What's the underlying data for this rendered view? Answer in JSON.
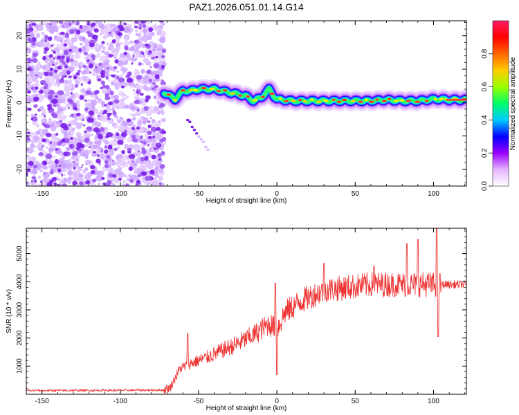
{
  "title": "PAZ1.2026.051.01.14.G14",
  "chart_data": [
    {
      "type": "heatmap",
      "name": "spectrogram",
      "xlabel": "Height of straight line (km)",
      "ylabel": "Frequency (Hz)",
      "xlim": [
        -160,
        121
      ],
      "ylim": [
        -25,
        24.5
      ],
      "xticks": [
        -150,
        -100,
        -50,
        0,
        50,
        100
      ],
      "yticks": [
        -20,
        -10,
        0,
        10,
        20
      ],
      "noise_region_x": [
        -160,
        -72
      ],
      "ridge": {
        "x": [
          -72,
          -65,
          -60,
          -55,
          -50,
          -45,
          -40,
          -35,
          -30,
          -25,
          -20,
          -15,
          -10,
          -8,
          -5,
          -2,
          0,
          10,
          20,
          30,
          40,
          50,
          60,
          70,
          80,
          90,
          100,
          105,
          110,
          121
        ],
        "y": [
          3.0,
          1.0,
          3.5,
          3.5,
          4.0,
          4.0,
          4.0,
          3.5,
          3.0,
          2.5,
          2.0,
          0.5,
          1.5,
          2.5,
          4.0,
          2.0,
          1.0,
          0.5,
          0.5,
          0.5,
          0.5,
          0.5,
          0.5,
          0.8,
          0.5,
          0.5,
          1.0,
          1.0,
          0.8,
          0.8
        ]
      },
      "artifact": {
        "x": [
          -57,
          -44
        ],
        "y": [
          -5,
          -14
        ]
      },
      "colorbar": {
        "label": "Normalized spectral amplitude",
        "ticks": [
          "0.0",
          "0.2",
          "0.4",
          "0.6",
          "0.8"
        ],
        "range": [
          0,
          1
        ],
        "colors": [
          "#ffffff",
          "#e6b3ff",
          "#9900ff",
          "#0000ff",
          "#00ccff",
          "#00ff66",
          "#99ff00",
          "#ffcc00",
          "#ff6600",
          "#ff0000",
          "#ff1a66"
        ]
      }
    },
    {
      "type": "line",
      "name": "snr",
      "xlabel": "Height of straight line (km)",
      "ylabel": "SNR (10 * v/v)",
      "xlim": [
        -160,
        121
      ],
      "ylim": [
        0,
        5900
      ],
      "xticks": [
        -150,
        -100,
        -50,
        0,
        50,
        100
      ],
      "yticks": [
        1000,
        2000,
        3000,
        4000,
        5000
      ],
      "color": "#ee3333",
      "trend": {
        "x": [
          -160,
          -100,
          -72,
          -68,
          -62,
          -55,
          -45,
          -35,
          -25,
          -15,
          -5,
          0,
          5,
          15,
          30,
          45,
          60,
          80,
          95,
          105,
          121
        ],
        "y": [
          130,
          140,
          150,
          250,
          900,
          1100,
          1300,
          1550,
          1800,
          2100,
          2500,
          2300,
          2900,
          3300,
          3700,
          3800,
          3900,
          3900,
          3900,
          3900,
          3900
        ]
      },
      "spikes": [
        {
          "x": -57,
          "y": 2150
        },
        {
          "x": -1,
          "y": 3950
        },
        {
          "x": 0,
          "y": 700
        },
        {
          "x": 30,
          "y": 4650
        },
        {
          "x": 62,
          "y": 4550
        },
        {
          "x": 83,
          "y": 5350
        },
        {
          "x": 90,
          "y": 5500
        },
        {
          "x": 102,
          "y": 5900
        },
        {
          "x": 103,
          "y": 2050
        }
      ]
    }
  ]
}
